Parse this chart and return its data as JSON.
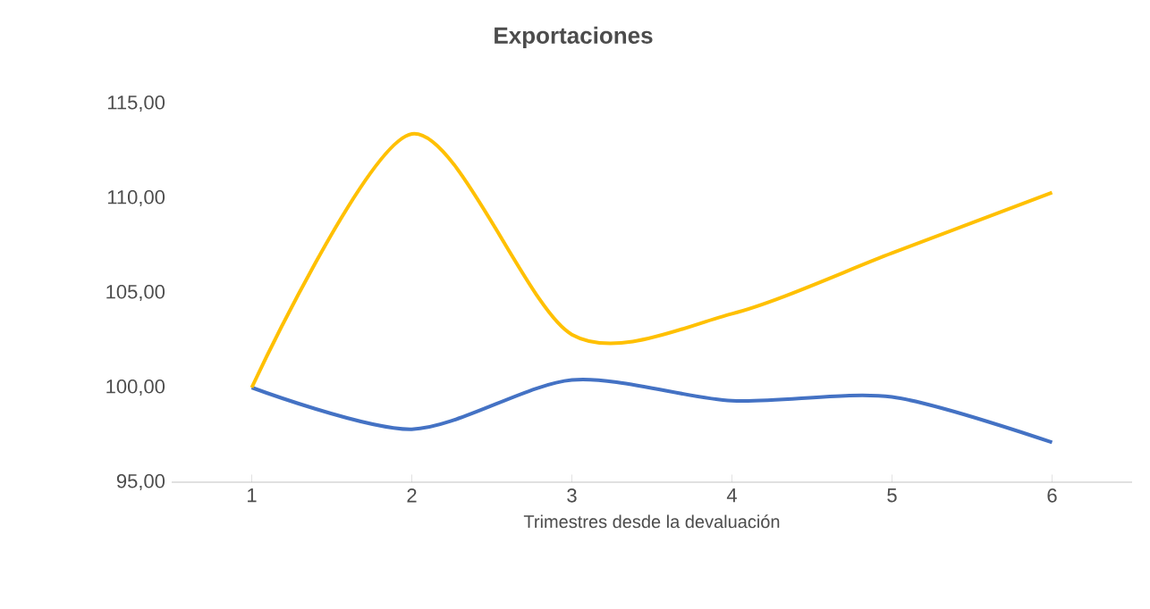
{
  "chart_data": {
    "type": "line",
    "title": "Exportaciones",
    "xlabel": "Trimestres desde la devaluación",
    "categories": [
      "1",
      "2",
      "3",
      "4",
      "5",
      "6"
    ],
    "series": [
      {
        "color": "#4472c4",
        "values": [
          100,
          97.8,
          100.4,
          99.3,
          99.5,
          97.1
        ]
      },
      {
        "color": "#ffc000",
        "values": [
          100,
          113.4,
          102.8,
          103.9,
          107.1,
          110.3
        ]
      }
    ],
    "ylim": [
      95,
      115
    ],
    "yticks": [
      {
        "value": 95,
        "label": "95,00"
      },
      {
        "value": 100,
        "label": "100,00"
      },
      {
        "value": 105,
        "label": "105,00"
      },
      {
        "value": 110,
        "label": "110,00"
      },
      {
        "value": 115,
        "label": "115,00"
      }
    ],
    "grid": false,
    "marker": "none",
    "line_style": "solid"
  }
}
